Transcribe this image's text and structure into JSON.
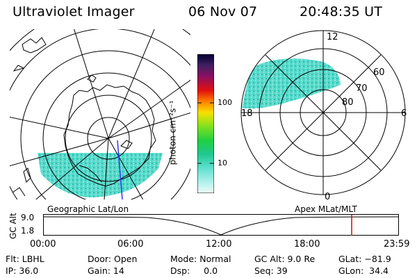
{
  "header": {
    "title": "Ultraviolet Imager",
    "date": "06 Nov 07",
    "time": "20:48:35 UT"
  },
  "colorbar": {
    "unit_label": "photon cm⁻²s⁻¹",
    "ticks": [
      "100",
      "10"
    ]
  },
  "polar": {
    "mlt_labels": {
      "top": "12",
      "left": "18",
      "right": "6",
      "bottom": "0"
    },
    "mlat_labels": [
      "60",
      "70",
      "80"
    ]
  },
  "timeline": {
    "left_title": "Geographic Lat/Lon",
    "right_title": "Apex MLat/MLT",
    "axis_label": "GC Alt",
    "y_max": "9.0",
    "y_min": "1.8",
    "x_ticks": [
      "00:00",
      "06:00",
      "12:00",
      "18:00",
      "23:59"
    ],
    "current_time_fraction": 0.8671
  },
  "info": {
    "filter": "Flt: LBHL",
    "door": "Door: Open",
    "mode": "Mode: Normal",
    "gc_alt": "GC Alt: 9.0 Re",
    "glat": "GLat: −81.9",
    "ip": "IP: 36.0",
    "gain": "Gain: 14",
    "dsp": "Dsp:     0.0",
    "seq": "Seq: 39",
    "glon": "GLon:  34.4"
  },
  "colors": {
    "aurora": "#4fd8c8",
    "aurora_dark": "#2bb89e",
    "marker": "#e00000"
  }
}
